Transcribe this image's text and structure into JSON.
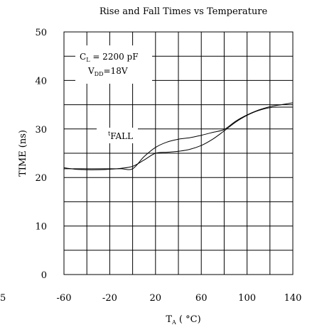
{
  "chart_data": {
    "type": "line",
    "title": "Rise and Fall Times vs Temperature",
    "xlabel": {
      "main": "T",
      "sub": "A",
      "unit": " ( °C)"
    },
    "ylabel": "TIME (ns)",
    "xlim": [
      -60,
      140
    ],
    "ylim": [
      0,
      50
    ],
    "x_ticks": [
      -60,
      -20,
      20,
      60,
      100,
      140
    ],
    "x_tick_labels": [
      "-60",
      "-20",
      "20",
      "60",
      "100",
      "140"
    ],
    "y_ticks": [
      0,
      10,
      20,
      30,
      40,
      50
    ],
    "y_tick_labels": [
      "0",
      "10",
      "20",
      "30",
      "40",
      "50"
    ],
    "grid": true,
    "series": [
      {
        "name": "FALL",
        "x": [
          -60,
          -50,
          -40,
          -30,
          -20,
          -10,
          0,
          10,
          20,
          30,
          40,
          50,
          60,
          70,
          80,
          90,
          100,
          110,
          120,
          130,
          140
        ],
        "y": [
          22,
          21.7,
          21.6,
          21.6,
          21.7,
          21.9,
          22.3,
          23.6,
          25,
          25.2,
          25.4,
          25.8,
          26.6,
          27.9,
          29.6,
          31.4,
          32.8,
          33.8,
          34.4,
          34.5,
          34.5
        ]
      },
      {
        "name": "",
        "x": [
          -60,
          -50,
          -40,
          -30,
          -20,
          -10,
          0,
          10,
          20,
          30,
          40,
          50,
          60,
          70,
          80,
          90,
          100,
          110,
          120,
          130,
          140
        ],
        "y": [
          21.8,
          21.8,
          21.8,
          21.8,
          21.8,
          21.8,
          21.8,
          24.3,
          26.2,
          27.3,
          27.9,
          28.2,
          28.7,
          29.3,
          29.9,
          31.6,
          32.9,
          33.9,
          34.6,
          35,
          35.4
        ]
      }
    ],
    "annotations": [
      {
        "id": "cl",
        "main": "C",
        "sub": "L",
        "rest": " = 2200 pF"
      },
      {
        "id": "vdd",
        "main": "V",
        "sub": "DD",
        "rest": "=18V"
      },
      {
        "id": "fall",
        "main": "",
        "sub": "t",
        "rest": "FALL"
      }
    ],
    "stray_label": "5"
  }
}
